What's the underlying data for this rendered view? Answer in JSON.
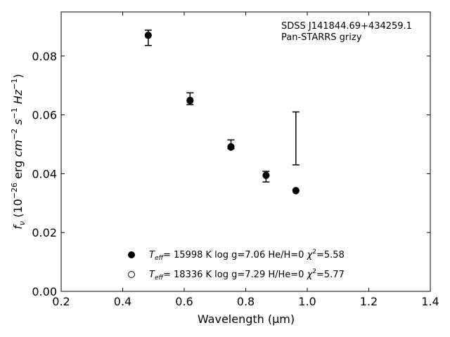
{
  "chart_data": {
    "type": "scatter",
    "title": "",
    "xlabel": "Wavelength (μm)",
    "ylabel": "f_ν (10^−26 erg cm^−2 s^−1 Hz^−1)",
    "xlim": [
      0.2,
      1.4
    ],
    "ylim": [
      0.0,
      0.095
    ],
    "xticks": [
      0.2,
      0.4,
      0.6,
      0.8,
      1.0,
      1.2,
      1.4
    ],
    "xtick_labels": [
      "0.2",
      "0.4",
      "0.6",
      "0.8",
      "1.0",
      "1.2",
      "1.4"
    ],
    "yticks": [
      0.0,
      0.02,
      0.04,
      0.06,
      0.08
    ],
    "ytick_labels": [
      "0.00",
      "0.02",
      "0.04",
      "0.06",
      "0.08"
    ],
    "grid": false,
    "annotation": {
      "line1": "SDSS J141844.69+434259.1",
      "line2": "Pan-STARRS grizy"
    },
    "observed": {
      "bands": [
        "g",
        "r",
        "i",
        "z",
        "y"
      ],
      "x": [
        0.483,
        0.619,
        0.752,
        0.866,
        0.963
      ],
      "y": [
        0.0862,
        0.0655,
        0.05,
        0.039,
        0.052
      ],
      "yerr_low": [
        0.0026,
        0.002,
        0.0015,
        0.0018,
        0.009
      ],
      "yerr_high": [
        0.0026,
        0.002,
        0.0015,
        0.0018,
        0.009
      ]
    },
    "series": [
      {
        "marker": "filled-circle",
        "x": [
          0.483,
          0.619,
          0.752,
          0.866,
          0.963
        ],
        "y": [
          0.087,
          0.0648,
          0.049,
          0.0395,
          0.0342
        ]
      },
      {
        "marker": "open-circle",
        "x": [
          0.483,
          0.619,
          0.752,
          0.866,
          0.963
        ],
        "y": [
          0.0871,
          0.065,
          0.0492,
          0.0394,
          0.0343
        ]
      }
    ],
    "legend": {
      "placement": "lower-left",
      "entries": [
        {
          "marker": "filled-circle",
          "teff_symbol": "T",
          "teff_sub": "eff",
          "text": "= 15998 K  log g=7.06  He/H=0",
          "chi_symbol": "χ",
          "chi_sup": "2",
          "chi_text": "=5.58"
        },
        {
          "marker": "open-circle",
          "teff_symbol": "T",
          "teff_sub": "eff",
          "text": "= 18336 K  log g=7.29  H/He=0",
          "chi_symbol": "χ",
          "chi_sup": "2",
          "chi_text": "=5.77"
        }
      ]
    }
  }
}
